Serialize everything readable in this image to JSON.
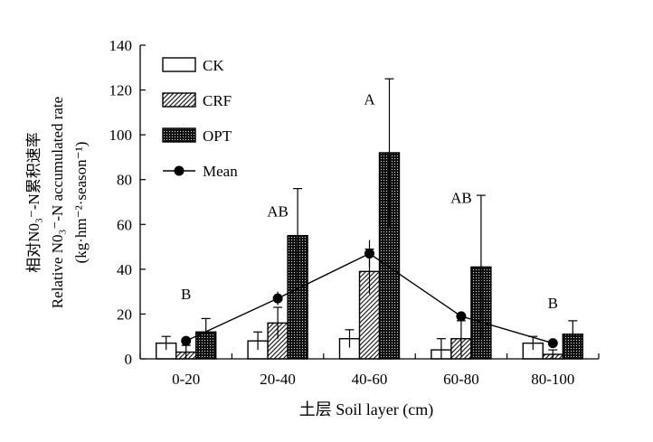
{
  "chart_data": {
    "type": "bar",
    "title": "",
    "categories": [
      "0-20",
      "20-40",
      "40-60",
      "60-80",
      "80-100"
    ],
    "xlabel": "土层 Soil layer (cm)",
    "ylabel_lines": [
      "相对N0₃⁻-N累积速率",
      "Relative N0₃⁻-N accumulated rate",
      "(kg·hm⁻²·season⁻¹)"
    ],
    "ylim": [
      0,
      140
    ],
    "yticks": [
      0,
      20,
      40,
      60,
      80,
      100,
      120,
      140
    ],
    "grid": false,
    "legend_position": "top-left",
    "series": [
      {
        "name": "CK",
        "pattern": "white",
        "values": [
          7,
          8,
          9,
          4,
          7
        ],
        "errors": [
          3,
          4,
          4,
          5,
          3
        ]
      },
      {
        "name": "CRF",
        "pattern": "hatch",
        "values": [
          3,
          16,
          39,
          9,
          2
        ],
        "errors": [
          3,
          7,
          10,
          8,
          2
        ]
      },
      {
        "name": "OPT",
        "pattern": "dots",
        "values": [
          12,
          55,
          92,
          41,
          11
        ],
        "errors": [
          6,
          21,
          33,
          32,
          6
        ]
      }
    ],
    "mean": {
      "name": "Mean",
      "values": [
        8,
        27,
        47,
        19,
        7
      ],
      "errors": [
        1,
        3,
        6,
        2,
        1
      ]
    },
    "annotations": [
      {
        "category": "0-20",
        "text": "B",
        "y": 29
      },
      {
        "category": "20-40",
        "text": "AB",
        "y": 66
      },
      {
        "category": "40-60",
        "text": "A",
        "y": 116
      },
      {
        "category": "60-80",
        "text": "AB",
        "y": 72
      },
      {
        "category": "80-100",
        "text": "B",
        "y": 25
      }
    ]
  }
}
